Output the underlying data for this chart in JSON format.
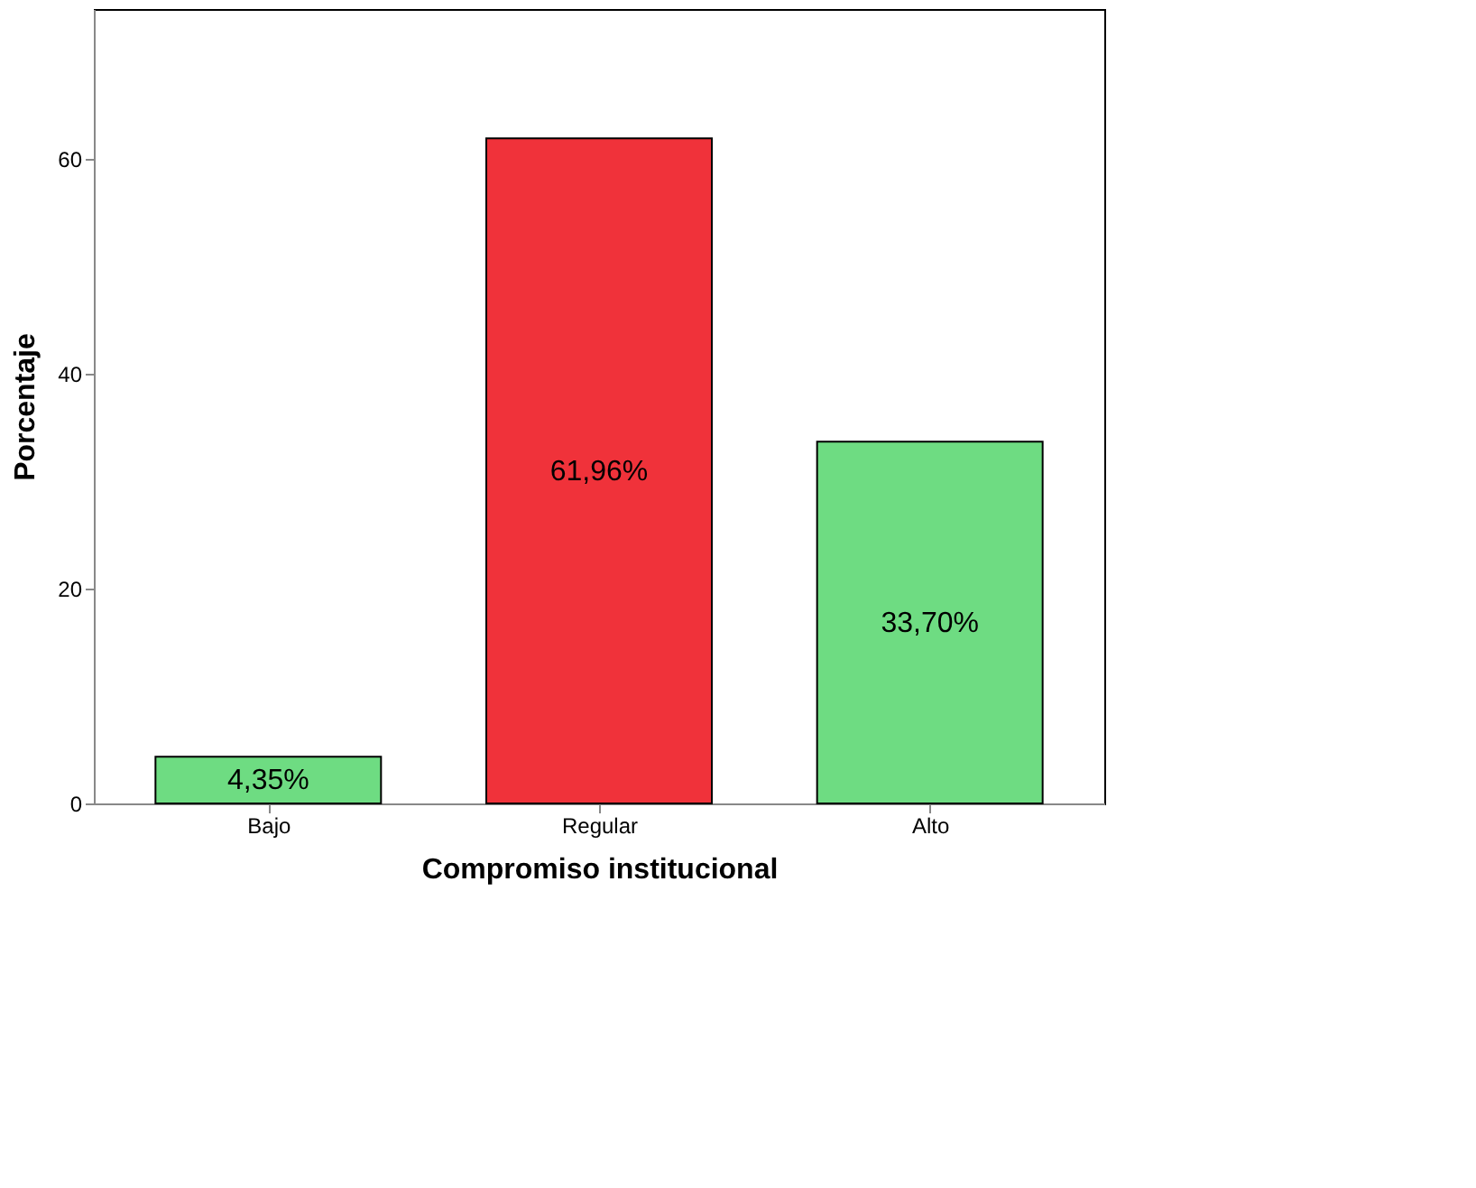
{
  "chart_data": {
    "type": "bar",
    "xlabel": "Compromiso institucional",
    "ylabel": "Porcentaje",
    "categories": [
      "Bajo",
      "Regular",
      "Alto"
    ],
    "values": [
      4.35,
      61.96,
      33.7
    ],
    "colors": [
      "#6edc82",
      "#f0323a",
      "#6edc82"
    ],
    "value_labels": [
      "4,35%",
      "61,96%",
      "33,70%"
    ],
    "ylim": [
      0,
      74
    ],
    "yticks": [
      0,
      20,
      40,
      60
    ],
    "grid": false
  }
}
